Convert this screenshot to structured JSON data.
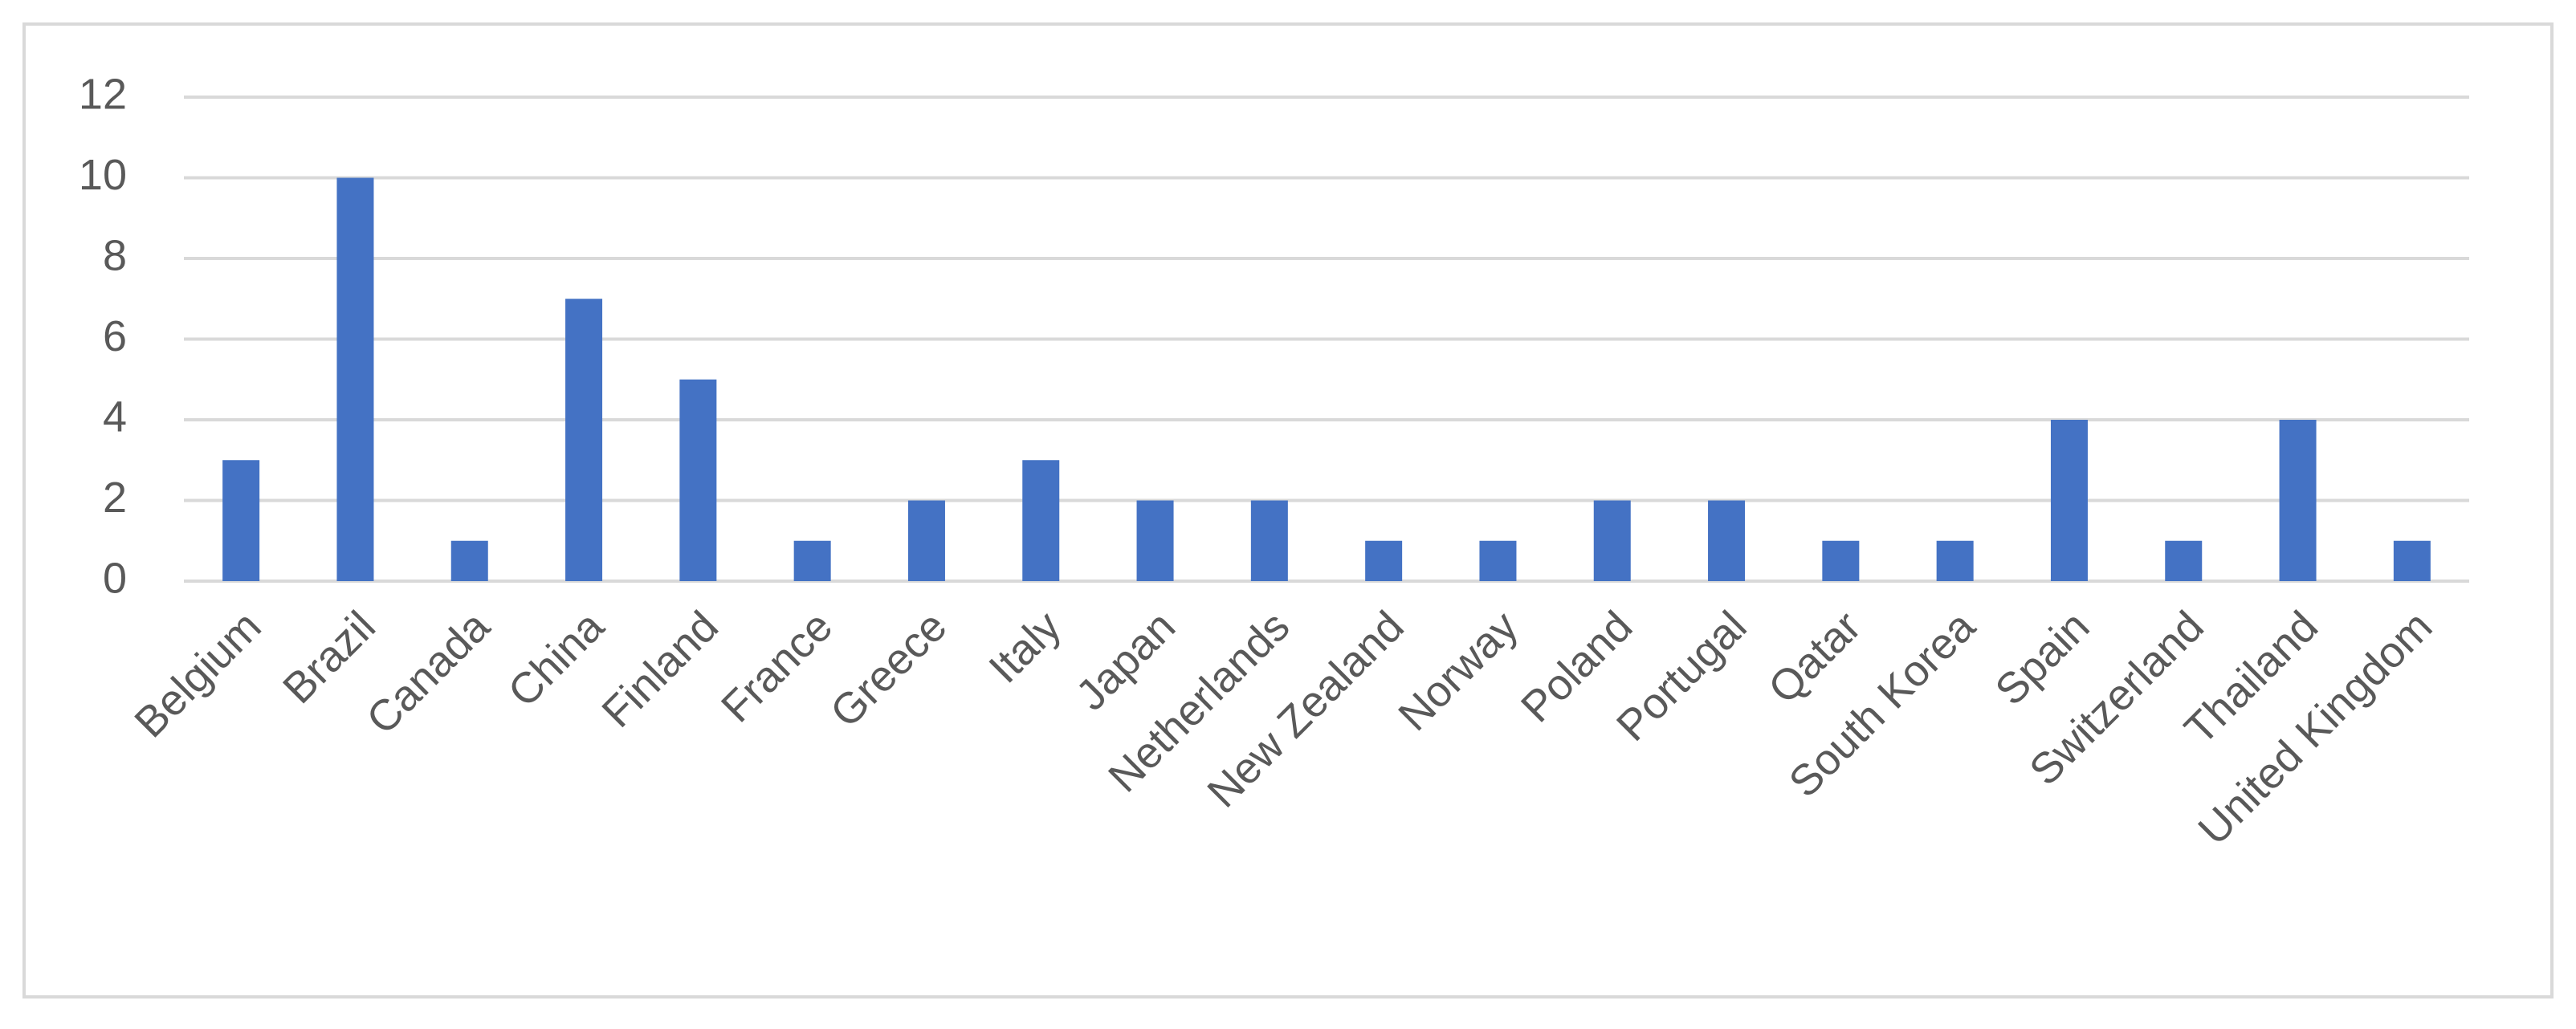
{
  "chart_data": {
    "type": "bar",
    "categories": [
      "Belgium",
      "Brazil",
      "Canada",
      "China",
      "Finland",
      "France",
      "Greece",
      "Italy",
      "Japan",
      "Netherlands",
      "New Zealand",
      "Norway",
      "Poland",
      "Portugal",
      "Qatar",
      "South Korea",
      "Spain",
      "Switzerland",
      "Thailand",
      "United Kingdom"
    ],
    "values": [
      3,
      10,
      1,
      7,
      5,
      1,
      2,
      3,
      2,
      2,
      1,
      1,
      2,
      2,
      1,
      1,
      4,
      1,
      4,
      1
    ],
    "color": "#4472c4",
    "ylim": [
      0,
      12
    ],
    "yticks": [
      0,
      2,
      4,
      6,
      8,
      10,
      12
    ],
    "grid": true
  }
}
